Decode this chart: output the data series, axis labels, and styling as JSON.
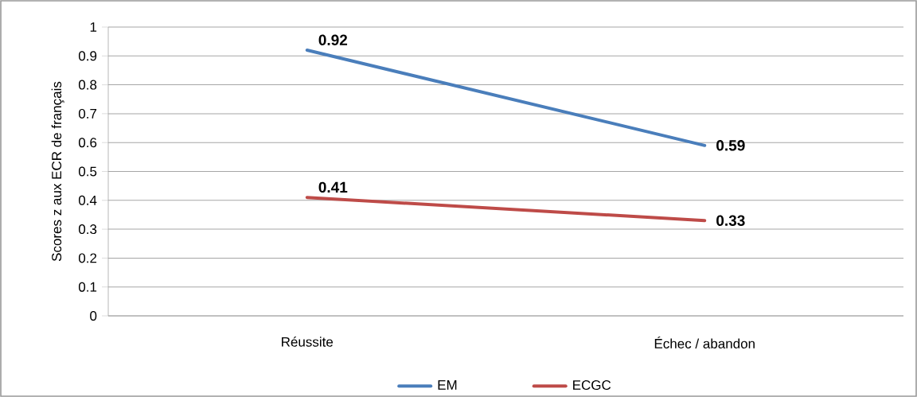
{
  "chart_data": {
    "type": "line",
    "ylabel": "Scores z aux ECR de français",
    "categories": [
      "Réussite",
      "Échec / abandon"
    ],
    "series": [
      {
        "name": "EM",
        "color": "#4a7ebb",
        "values": [
          0.92,
          0.59
        ]
      },
      {
        "name": "ECGC",
        "color": "#be4b48",
        "values": [
          0.41,
          0.33
        ]
      }
    ],
    "ylim": [
      0,
      1
    ],
    "yticks": [
      0,
      0.1,
      0.2,
      0.3,
      0.4,
      0.5,
      0.6,
      0.7,
      0.8,
      0.9,
      1
    ],
    "grid": "y",
    "legend": "bottom",
    "data_labels": true,
    "marker": "none",
    "line_style": "solid"
  }
}
